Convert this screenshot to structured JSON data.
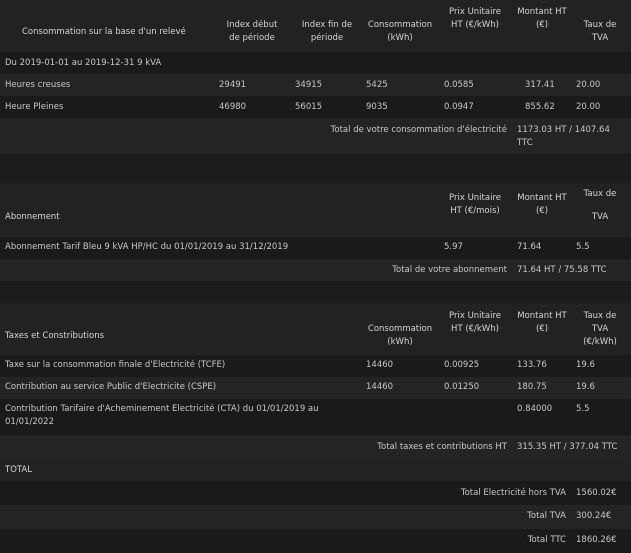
{
  "s1": {
    "headers": {
      "label": "Consommation sur la base d'un relevé",
      "index_debut": "Index début de période",
      "index_fin": "Index fin de période",
      "consommation": "Consommation (kWh)",
      "prix": "Prix Unitaire HT (€/kWh)",
      "montant": "Montant HT (€)",
      "tva": "Taux de TVA"
    },
    "period": "Du 2019-01-01 au 2019-12-31 9 kVA",
    "rows": [
      {
        "label": "Heures creuses",
        "debut": "29491",
        "fin": "34915",
        "conso": "5425",
        "prix": "0.0585",
        "montant": "317.41",
        "tva": "20.00"
      },
      {
        "label": "Heure Pleines",
        "debut": "46980",
        "fin": "56015",
        "conso": "9035",
        "prix": "0.0947",
        "montant": "855.62",
        "tva": "20.00"
      }
    ],
    "total_label": "Total de votre consommation d'électricité",
    "total_value": "1173.03 HT / 1407.64 TTC"
  },
  "s2": {
    "headers": {
      "label": "Abonnement",
      "prix": "Prix Unitaire HT (€/mois)",
      "montant": "Montant HT (€)",
      "tva1": "Taux de",
      "tva2": "TVA"
    },
    "rows": [
      {
        "label": "Abonnement Tarif Bleu 9 kVA HP/HC du 01/01/2019 au 31/12/2019",
        "prix": "5.97",
        "montant": "71.64",
        "tva": "5.5"
      }
    ],
    "total_label": "Total de votre abonnement",
    "total_value": "71.64 HT / 75.58 TTC"
  },
  "s3": {
    "headers": {
      "label": "Taxes et Constributions",
      "consommation": "Consommation (kWh)",
      "prix": "Prix Unitaire HT (€/kWh)",
      "montant": "Montant HT (€)",
      "tva": "Taux de TVA (€/kWh)"
    },
    "rows": [
      {
        "label": "Taxe sur la consommation finale d'Electricité (TCFE)",
        "conso": "14460",
        "prix": "0.00925",
        "montant": "133.76",
        "tva": "19.6"
      },
      {
        "label": "Contribution au service Public d'Electricite (CSPE)",
        "conso": "14460",
        "prix": "0.01250",
        "montant": "180.75",
        "tva": "19.6"
      },
      {
        "label": "Contribution Tarifaire d'Acheminement Electricité (CTA) du 01/01/2019 au 01/01/2022",
        "conso": "",
        "prix": "",
        "montant": "0.84000",
        "tva": "5.5"
      }
    ],
    "total_label": "Total taxes et contributions HT",
    "total_value": "315.35 HT / 377.04 TTC"
  },
  "total": {
    "title": "TOTAL",
    "lines": [
      {
        "label": "Total Electricité hors TVA",
        "value": "1560.02€"
      },
      {
        "label": "Total TVA",
        "value": "300.24€"
      },
      {
        "label": "Total TTC",
        "value": "1860.26€"
      }
    ]
  }
}
